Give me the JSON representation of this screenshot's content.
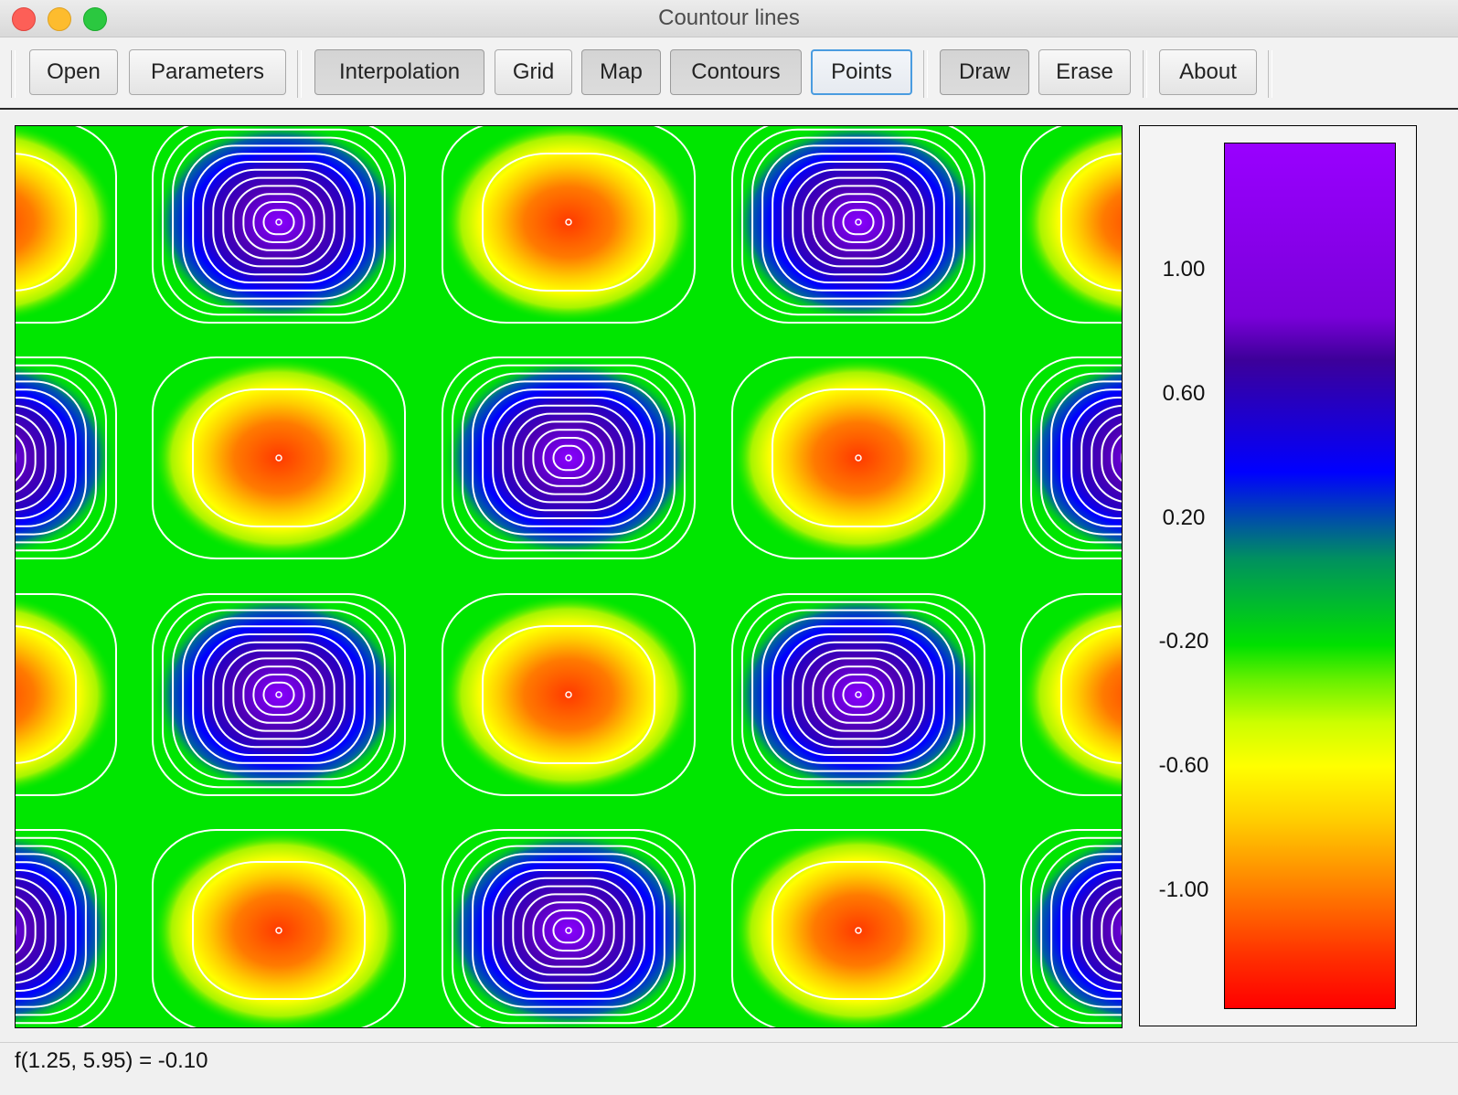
{
  "window": {
    "title": "Countour lines"
  },
  "toolbar": {
    "buttons": [
      {
        "label": "Open"
      },
      {
        "label": "Parameters"
      },
      {
        "label": "Interpolation",
        "state": "pressed"
      },
      {
        "label": "Grid"
      },
      {
        "label": "Map",
        "state": "pressed"
      },
      {
        "label": "Contours",
        "state": "pressed"
      },
      {
        "label": "Points",
        "state": "focused"
      },
      {
        "label": "Draw",
        "state": "pressed"
      },
      {
        "label": "Erase"
      },
      {
        "label": "About"
      }
    ]
  },
  "legend": {
    "ticks": [
      "1.00",
      "0.60",
      "0.20",
      "-0.20",
      "-0.60",
      "-1.00"
    ],
    "colors": [
      "#9900ff",
      "#3d0099",
      "#0000ff",
      "#00e000",
      "#ffff00",
      "#ff8000",
      "#ff0000"
    ]
  },
  "status": {
    "text": "f(1.25, 5.95) = -0.10"
  }
}
